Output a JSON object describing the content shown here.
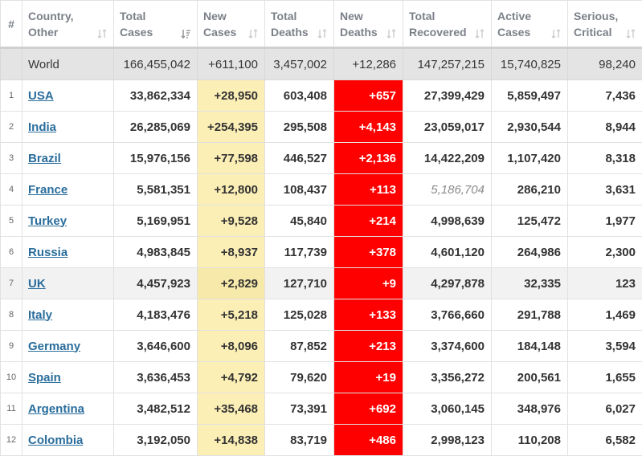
{
  "header": {
    "rank": "#",
    "country": [
      "Country,",
      "Other"
    ],
    "total_cases": [
      "Total",
      "Cases"
    ],
    "new_cases": [
      "New",
      "Cases"
    ],
    "total_deaths": [
      "Total",
      "Deaths"
    ],
    "new_deaths": [
      "New",
      "Deaths"
    ],
    "total_recovered": [
      "Total",
      "Recovered"
    ],
    "active_cases": [
      "Active",
      "Cases"
    ],
    "serious": [
      "Serious,",
      "Critical"
    ]
  },
  "world": {
    "name": "World",
    "total_cases": "166,455,042",
    "new_cases": "+611,100",
    "total_deaths": "3,457,002",
    "new_deaths": "+12,286",
    "total_recovered": "147,257,215",
    "active_cases": "15,740,825",
    "serious": "98,240"
  },
  "rows": [
    {
      "rank": "1",
      "country": "USA",
      "total_cases": "33,862,334",
      "new_cases": "+28,950",
      "total_deaths": "603,408",
      "new_deaths": "+657",
      "total_recovered": "27,399,429",
      "active_cases": "5,859,497",
      "serious": "7,436"
    },
    {
      "rank": "2",
      "country": "India",
      "total_cases": "26,285,069",
      "new_cases": "+254,395",
      "total_deaths": "295,508",
      "new_deaths": "+4,143",
      "total_recovered": "23,059,017",
      "active_cases": "2,930,544",
      "serious": "8,944"
    },
    {
      "rank": "3",
      "country": "Brazil",
      "total_cases": "15,976,156",
      "new_cases": "+77,598",
      "total_deaths": "446,527",
      "new_deaths": "+2,136",
      "total_recovered": "14,422,209",
      "active_cases": "1,107,420",
      "serious": "8,318"
    },
    {
      "rank": "4",
      "country": "France",
      "total_cases": "5,581,351",
      "new_cases": "+12,800",
      "total_deaths": "108,437",
      "new_deaths": "+113",
      "total_recovered": "5,186,704",
      "active_cases": "286,210",
      "serious": "3,631"
    },
    {
      "rank": "5",
      "country": "Turkey",
      "total_cases": "5,169,951",
      "new_cases": "+9,528",
      "total_deaths": "45,840",
      "new_deaths": "+214",
      "total_recovered": "4,998,639",
      "active_cases": "125,472",
      "serious": "1,977"
    },
    {
      "rank": "6",
      "country": "Russia",
      "total_cases": "4,983,845",
      "new_cases": "+8,937",
      "total_deaths": "117,739",
      "new_deaths": "+378",
      "total_recovered": "4,601,120",
      "active_cases": "264,986",
      "serious": "2,300"
    },
    {
      "rank": "7",
      "country": "UK",
      "total_cases": "4,457,923",
      "new_cases": "+2,829",
      "total_deaths": "127,710",
      "new_deaths": "+9",
      "total_recovered": "4,297,878",
      "active_cases": "32,335",
      "serious": "123"
    },
    {
      "rank": "8",
      "country": "Italy",
      "total_cases": "4,183,476",
      "new_cases": "+5,218",
      "total_deaths": "125,028",
      "new_deaths": "+133",
      "total_recovered": "3,766,660",
      "active_cases": "291,788",
      "serious": "1,469"
    },
    {
      "rank": "9",
      "country": "Germany",
      "total_cases": "3,646,600",
      "new_cases": "+8,096",
      "total_deaths": "87,852",
      "new_deaths": "+213",
      "total_recovered": "3,374,600",
      "active_cases": "184,148",
      "serious": "3,594"
    },
    {
      "rank": "10",
      "country": "Spain",
      "total_cases": "3,636,453",
      "new_cases": "+4,792",
      "total_deaths": "79,620",
      "new_deaths": "+19",
      "total_recovered": "3,356,272",
      "active_cases": "200,561",
      "serious": "1,655"
    },
    {
      "rank": "11",
      "country": "Argentina",
      "total_cases": "3,482,512",
      "new_cases": "+35,468",
      "total_deaths": "73,391",
      "new_deaths": "+692",
      "total_recovered": "3,060,145",
      "active_cases": "348,976",
      "serious": "6,027"
    },
    {
      "rank": "12",
      "country": "Colombia",
      "total_cases": "3,192,050",
      "new_cases": "+14,838",
      "total_deaths": "83,719",
      "new_deaths": "+486",
      "total_recovered": "2,998,123",
      "active_cases": "110,208",
      "serious": "6,582"
    }
  ],
  "colors": {
    "new_cases_bg": "#fcefb6",
    "new_deaths_bg": "#ff0000",
    "world_row_bg": "#e4e4e4",
    "country_link": "#2a6d9c"
  },
  "icons": {
    "sort": "sort-arrows-icon",
    "sort_active": "sort-descending-icon"
  }
}
